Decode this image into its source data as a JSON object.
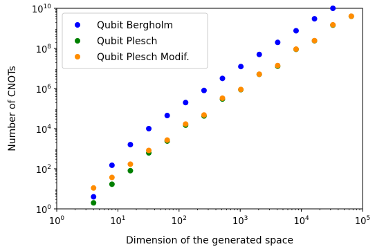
{
  "chart_data": {
    "type": "scatter",
    "title": "",
    "xlabel": "Dimension of the generated space",
    "ylabel": "Number of CNOTs",
    "x_scale": "log",
    "y_scale": "log",
    "xlim": [
      1,
      100000
    ],
    "ylim": [
      1,
      10000000000
    ],
    "grid": false,
    "legend_position": "top-left",
    "x_ticks": [
      {
        "value": 1,
        "base": "10",
        "exp": "0"
      },
      {
        "value": 10,
        "base": "10",
        "exp": "1"
      },
      {
        "value": 100,
        "base": "10",
        "exp": "2"
      },
      {
        "value": 1000,
        "base": "10",
        "exp": "3"
      },
      {
        "value": 10000,
        "base": "10",
        "exp": "4"
      },
      {
        "value": 100000,
        "base": "10",
        "exp": "5"
      }
    ],
    "y_ticks": [
      {
        "value": 1,
        "base": "10",
        "exp": "0"
      },
      {
        "value": 100,
        "base": "10",
        "exp": "2"
      },
      {
        "value": 10000,
        "base": "10",
        "exp": "4"
      },
      {
        "value": 1000000,
        "base": "10",
        "exp": "6"
      },
      {
        "value": 100000000,
        "base": "10",
        "exp": "8"
      },
      {
        "value": 10000000000,
        "base": "10",
        "exp": "10"
      }
    ],
    "series": [
      {
        "name": "Qubit Bergholm",
        "color": "#0000ff",
        "x": [
          4,
          8,
          16,
          32,
          64,
          128,
          256,
          512,
          1024,
          2048,
          4096,
          8192,
          16384,
          32768
        ],
        "y": [
          4,
          150,
          1600,
          10000,
          45000,
          200000,
          800000,
          3200000,
          12500000,
          50000000,
          200000000,
          760000000,
          3000000000,
          10000000000
        ]
      },
      {
        "name": "Qubit Plesch",
        "color": "#008000",
        "x": [
          4,
          8,
          16,
          32,
          64,
          128,
          256,
          512,
          1024,
          2048,
          4096,
          8192,
          16384,
          32768,
          65536
        ],
        "y": [
          2,
          17,
          80,
          620,
          2400,
          15000,
          43000,
          300000,
          880000,
          5100000,
          13000000,
          90000000,
          240000000,
          1450000000,
          4000000000
        ]
      },
      {
        "name": "Qubit Plesch Modif.",
        "color": "#ff8c00",
        "x": [
          4,
          8,
          16,
          32,
          64,
          128,
          256,
          512,
          1024,
          2048,
          4096,
          8192,
          16384,
          32768,
          65536
        ],
        "y": [
          11,
          37,
          170,
          820,
          2700,
          17000,
          48000,
          330000,
          900000,
          5200000,
          14000000,
          92000000,
          245000000,
          1500000000,
          4050000000
        ]
      }
    ]
  }
}
